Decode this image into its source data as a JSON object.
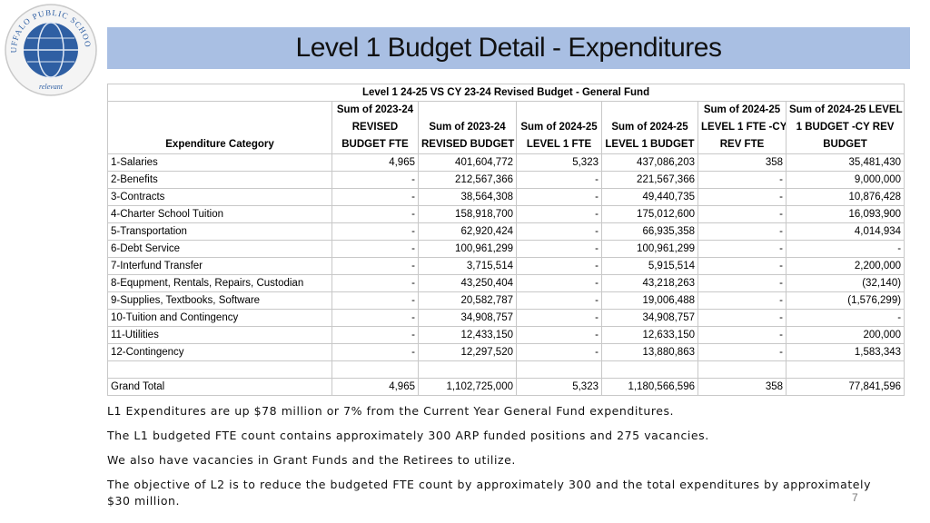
{
  "logo": {
    "ring_text": "BUFFALO PUBLIC SCHOOLS",
    "motto": "relevant"
  },
  "header": {
    "title": "Level 1 Budget Detail - Expenditures"
  },
  "table": {
    "title": "Level 1 24-25 VS CY 23-24 Revised Budget - General Fund",
    "headers": [
      [
        "Expenditure Category"
      ],
      [
        "Sum of 2023-24",
        "REVISED",
        "BUDGET FTE"
      ],
      [
        "Sum of 2023-24",
        "REVISED BUDGET"
      ],
      [
        "Sum of 2024-25",
        "LEVEL 1 FTE"
      ],
      [
        "Sum of 2024-25",
        "LEVEL 1 BUDGET"
      ],
      [
        "Sum of 2024-25",
        "LEVEL 1 FTE -CY",
        "REV FTE"
      ],
      [
        "Sum of 2024-25 LEVEL",
        "1 BUDGET -CY REV",
        "BUDGET"
      ]
    ],
    "rows": [
      [
        "1-Salaries",
        "4,965",
        "401,604,772",
        "5,323",
        "437,086,203",
        "358",
        "35,481,430"
      ],
      [
        "2-Benefits",
        "-",
        "212,567,366",
        "-",
        "221,567,366",
        "-",
        "9,000,000"
      ],
      [
        "3-Contracts",
        "-",
        "38,564,308",
        "-",
        "49,440,735",
        "-",
        "10,876,428"
      ],
      [
        "4-Charter School Tuition",
        "-",
        "158,918,700",
        "-",
        "175,012,600",
        "-",
        "16,093,900"
      ],
      [
        "5-Transportation",
        "-",
        "62,920,424",
        "-",
        "66,935,358",
        "-",
        "4,014,934"
      ],
      [
        "6-Debt Service",
        "-",
        "100,961,299",
        "-",
        "100,961,299",
        "-",
        "-"
      ],
      [
        "7-Interfund Transfer",
        "-",
        "3,715,514",
        "-",
        "5,915,514",
        "-",
        "2,200,000"
      ],
      [
        "8-Equpment, Rentals, Repairs, Custodian",
        "-",
        "43,250,404",
        "-",
        "43,218,263",
        "-",
        "(32,140)"
      ],
      [
        "9-Supplies, Textbooks, Software",
        "-",
        "20,582,787",
        "-",
        "19,006,488",
        "-",
        "(1,576,299)"
      ],
      [
        "10-Tuition and Contingency",
        "-",
        "34,908,757",
        "-",
        "34,908,757",
        "-",
        "-"
      ],
      [
        "11-Utilities",
        "-",
        "12,433,150",
        "-",
        "12,633,150",
        "-",
        "200,000"
      ],
      [
        "12-Contingency",
        "-",
        "12,297,520",
        "-",
        "13,880,863",
        "-",
        "1,583,343"
      ]
    ],
    "total": [
      "Grand Total",
      "4,965",
      "1,102,725,000",
      "5,323",
      "1,180,566,596",
      "358",
      "77,841,596"
    ]
  },
  "notes": [
    "L1 Expenditures are up $78 million or 7% from the Current Year General Fund expenditures.",
    "The L1 budgeted FTE count contains approximately 300 ARP funded positions and 275 vacancies.",
    "We also have vacancies in Grant Funds and the Retirees to utilize.",
    "The objective of L2 is to reduce the budgeted FTE count by approximately 300 and the total expenditures by approximately $30 million."
  ],
  "page_number": "7"
}
